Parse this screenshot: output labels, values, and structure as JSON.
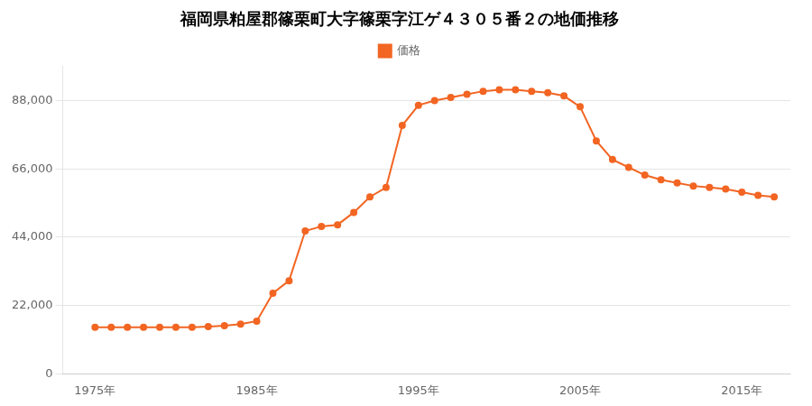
{
  "chart_data": {
    "type": "line",
    "title": "福岡県粕屋郡篠栗町大字篠栗字江ゲ４３０５番２の地価推移",
    "x": [
      1975,
      1976,
      1977,
      1978,
      1979,
      1980,
      1981,
      1982,
      1983,
      1984,
      1985,
      1986,
      1987,
      1988,
      1989,
      1990,
      1991,
      1992,
      1993,
      1994,
      1995,
      1996,
      1997,
      1998,
      1999,
      2000,
      2001,
      2002,
      2003,
      2004,
      2005,
      2006,
      2007,
      2008,
      2009,
      2010,
      2011,
      2012,
      2013,
      2014,
      2015,
      2016,
      2017
    ],
    "series": [
      {
        "name": "価格",
        "color": "#f26522",
        "marker": "circle",
        "values": [
          15000,
          15000,
          15000,
          15000,
          15000,
          15000,
          15000,
          15200,
          15500,
          16000,
          17000,
          26000,
          30000,
          46000,
          47500,
          48000,
          52000,
          57000,
          60000,
          80000,
          86500,
          88000,
          89000,
          90000,
          91000,
          91500,
          91500,
          91000,
          90500,
          89500,
          86000,
          75000,
          69000,
          66500,
          64000,
          62500,
          61500,
          60500,
          60000,
          59500,
          58500,
          57500,
          57000
        ]
      }
    ],
    "xlim": [
      1973,
      2018
    ],
    "xticks": [
      {
        "value": 1975,
        "label": "1975年"
      },
      {
        "value": 1985,
        "label": "1985年"
      },
      {
        "value": 1995,
        "label": "1995年"
      },
      {
        "value": 2005,
        "label": "2005年"
      },
      {
        "value": 2015,
        "label": "2015年"
      }
    ],
    "ylim": [
      0,
      99000
    ],
    "yticks": [
      0,
      {
        "value": 22000,
        "label": "22,000"
      },
      {
        "value": 44000,
        "label": "44,000"
      },
      {
        "value": 66000,
        "label": "66,000"
      },
      {
        "value": 88000,
        "label": "88,000"
      }
    ],
    "grid": "y",
    "legend": "top"
  }
}
